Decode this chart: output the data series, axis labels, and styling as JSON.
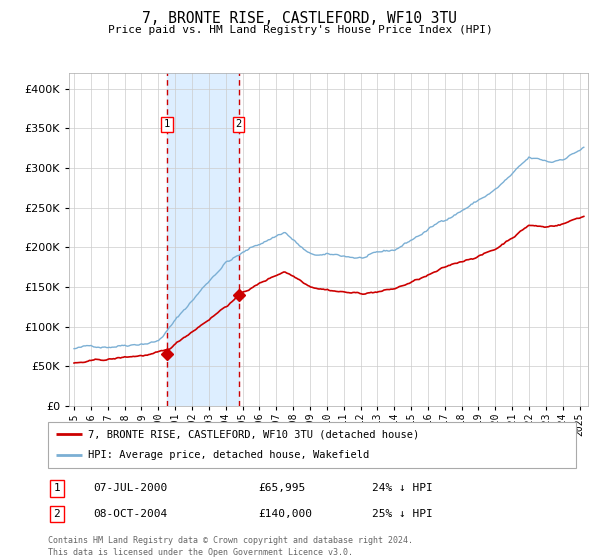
{
  "title": "7, BRONTE RISE, CASTLEFORD, WF10 3TU",
  "subtitle": "Price paid vs. HM Land Registry's House Price Index (HPI)",
  "legend_line1": "7, BRONTE RISE, CASTLEFORD, WF10 3TU (detached house)",
  "legend_line2": "HPI: Average price, detached house, Wakefield",
  "footer1": "Contains HM Land Registry data © Crown copyright and database right 2024.",
  "footer2": "This data is licensed under the Open Government Licence v3.0.",
  "sale1_date": "07-JUL-2000",
  "sale1_price": "£65,995",
  "sale1_hpi": "24% ↓ HPI",
  "sale2_date": "08-OCT-2004",
  "sale2_price": "£140,000",
  "sale2_hpi": "25% ↓ HPI",
  "sale1_x": 2000.52,
  "sale1_y": 65995,
  "sale2_x": 2004.77,
  "sale2_y": 140000,
  "hpi_line_color": "#7bafd4",
  "price_line_color": "#cc0000",
  "marker_color": "#cc0000",
  "vline_color": "#cc0000",
  "shade_color": "#ddeeff",
  "ylim": [
    0,
    420000
  ],
  "xlim_start": 1994.7,
  "xlim_end": 2025.5,
  "yticks": [
    0,
    50000,
    100000,
    150000,
    200000,
    250000,
    300000,
    350000,
    400000
  ],
  "xtick_years": [
    1995,
    1996,
    1997,
    1998,
    1999,
    2000,
    2001,
    2002,
    2003,
    2004,
    2005,
    2006,
    2007,
    2008,
    2009,
    2010,
    2011,
    2012,
    2013,
    2014,
    2015,
    2016,
    2017,
    2018,
    2019,
    2020,
    2021,
    2022,
    2023,
    2024,
    2025
  ]
}
